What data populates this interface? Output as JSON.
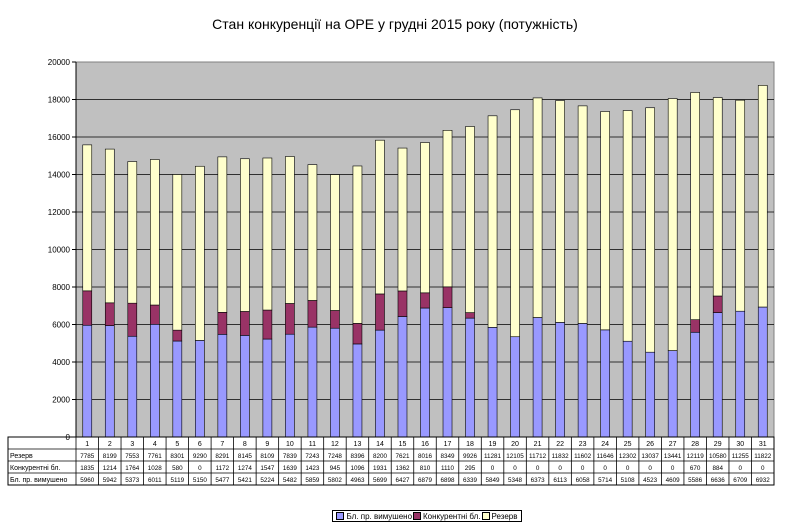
{
  "chart_data": {
    "type": "bar",
    "stacked": true,
    "title": "Стан конкуренції на ОРЕ  у грудні 2015 року (потужність)",
    "xlabel": "",
    "ylabel": "",
    "ylim": [
      0,
      20000
    ],
    "yticks": [
      "0",
      "2000",
      "4000",
      "6000",
      "8000",
      "10000",
      "12000",
      "14000",
      "16000",
      "18000",
      "20000"
    ],
    "grid": true,
    "legend_position": "bottom",
    "categories": [
      "1",
      "2",
      "3",
      "4",
      "5",
      "6",
      "7",
      "8",
      "9",
      "10",
      "11",
      "12",
      "13",
      "14",
      "15",
      "16",
      "17",
      "18",
      "19",
      "20",
      "21",
      "22",
      "23",
      "24",
      "25",
      "26",
      "27",
      "28",
      "29",
      "30",
      "31"
    ],
    "series": [
      {
        "name": "Бл. пр. вимушено",
        "color": "#9999ff",
        "values": [
          5960,
          5942,
          5373,
          6011,
          5119,
          5150,
          5477,
          5421,
          5224,
          5482,
          5859,
          5802,
          4963,
          5699,
          6427,
          6879,
          6898,
          6339,
          5849,
          5348,
          6373,
          6113,
          6058,
          5714,
          5108,
          4523,
          4609,
          5586,
          6636,
          6709,
          6932
        ]
      },
      {
        "name": "Конкурентні бл.",
        "color": "#993366",
        "values": [
          1835,
          1214,
          1764,
          1028,
          580,
          0,
          1172,
          1274,
          1547,
          1639,
          1423,
          945,
          1096,
          1931,
          1362,
          810,
          1110,
          295,
          0,
          0,
          0,
          0,
          0,
          0,
          0,
          0,
          0,
          670,
          884,
          0,
          0
        ]
      },
      {
        "name": "Резерв",
        "color": "#ffffcc",
        "values": [
          7785,
          8199,
          7553,
          7761,
          8301,
          9290,
          8291,
          8145,
          8109,
          7839,
          7243,
          7248,
          8396,
          8200,
          7621,
          8016,
          8349,
          9926,
          11281,
          12105,
          11712,
          11832,
          11602,
          11646,
          12302,
          13037,
          13441,
          12119,
          10580,
          11255,
          11822
        ]
      }
    ]
  }
}
